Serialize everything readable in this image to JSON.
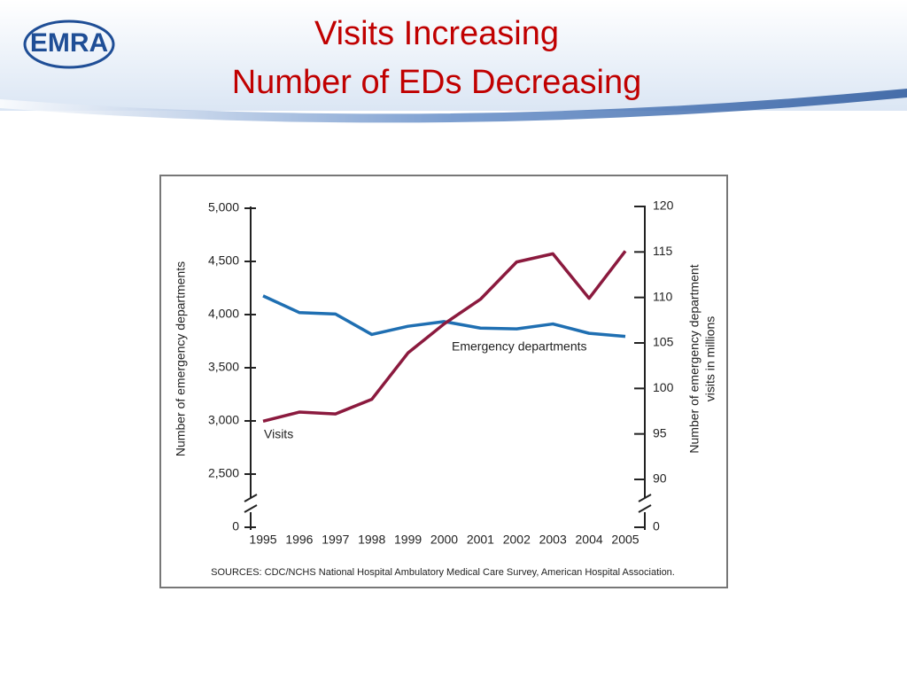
{
  "header": {
    "logo": "EMRA",
    "title": [
      "Visits Increasing",
      "Number of EDs Decreasing"
    ]
  },
  "chart_data": {
    "type": "line",
    "x": [
      1995,
      1996,
      1997,
      1998,
      1999,
      2000,
      2001,
      2002,
      2003,
      2004,
      2005
    ],
    "xlim": [
      1995,
      2005
    ],
    "xticks": [
      1995,
      1996,
      1997,
      1998,
      1999,
      2000,
      2001,
      2002,
      2003,
      2004,
      2005
    ],
    "ylabel": "Number of emergency departments",
    "y2label": [
      "Number of emergency department",
      "visits in millions"
    ],
    "ylim": [
      2500,
      5000
    ],
    "yticks": [
      0,
      {
        "value": 2500,
        "label": "2,500"
      },
      {
        "value": 3000,
        "label": "3,000"
      },
      {
        "value": 3500,
        "label": "3,500"
      },
      {
        "value": 4000,
        "label": "4,000"
      },
      {
        "value": 4500,
        "label": "4,500"
      },
      {
        "value": 5000,
        "label": "5,000"
      }
    ],
    "y2lim": [
      90,
      120
    ],
    "y2ticks": [
      0,
      90,
      95,
      100,
      105,
      110,
      115,
      120
    ],
    "axis_break": true,
    "series": [
      {
        "name": "Emergency departments",
        "color": "#1f6fb2",
        "values": [
          4176,
          4019,
          4005,
          3813,
          3890,
          3934,
          3873,
          3866,
          3912,
          3824,
          3795
        ]
      },
      {
        "name": "Visits",
        "color": "#8b1a3e",
        "axis": "y2",
        "values": [
          96.4,
          97.4,
          97.2,
          98.8,
          103.9,
          107.1,
          109.8,
          113.9,
          114.8,
          109.9,
          115.1
        ]
      }
    ],
    "source": "SOURCES: CDC/NCHS National Hospital Ambulatory Medical Care Survey, American Hospital Association."
  }
}
